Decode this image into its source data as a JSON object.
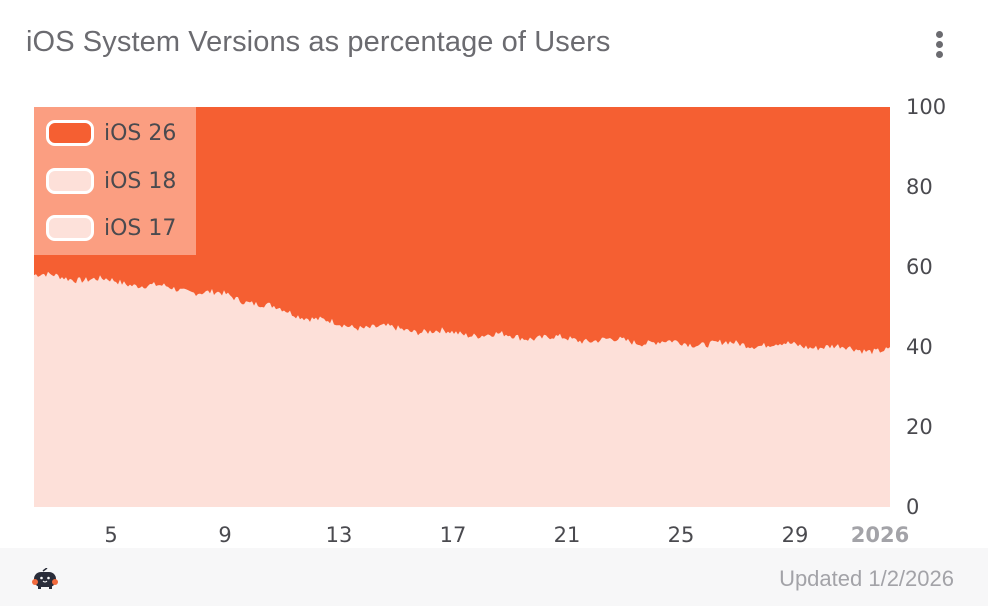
{
  "header": {
    "title": "iOS System Versions as percentage of Users",
    "menu_icon": "more-vertical-icon"
  },
  "colors": {
    "ios26": "#f55f32",
    "ios18": "#fde0d9",
    "ios17": "#fde1da",
    "legend_bg": "#f9a387",
    "axis_text": "#4a4a4f",
    "year_label": "#a3a3a8",
    "footer_bg": "#f7f7f8"
  },
  "legend": {
    "items": [
      {
        "label": "iOS 26",
        "color": "#f55f32"
      },
      {
        "label": "iOS 18",
        "color": "#fde0d9"
      },
      {
        "label": "iOS 17",
        "color": "#fde1da"
      }
    ]
  },
  "axes": {
    "y_ticks": [
      "100",
      "80",
      "60",
      "40",
      "20",
      "0"
    ],
    "x_ticks": [
      "5",
      "9",
      "13",
      "17",
      "21",
      "25",
      "29",
      "2026"
    ]
  },
  "footer": {
    "logo_icon": "mascot-logo-icon",
    "updated_text": "Updated 1/2/2026"
  },
  "chart_data": {
    "type": "area",
    "stacked": true,
    "normalized": true,
    "title": "iOS System Versions as percentage of Users",
    "xlabel": "",
    "ylabel": "",
    "ylim": [
      0,
      100
    ],
    "y_axis_position": "right",
    "x_tick_labels": [
      "5",
      "9",
      "13",
      "17",
      "21",
      "25",
      "29",
      "2026"
    ],
    "x": [
      "Dec 2",
      "Dec 5",
      "Dec 9",
      "Dec 13",
      "Dec 17",
      "Dec 21",
      "Dec 25",
      "Dec 29",
      "Jan 1"
    ],
    "legend_position": "top-left inside",
    "grid": false,
    "series": [
      {
        "name": "iOS 17 + iOS 18 (light fill, combined)",
        "values": [
          58,
          56.5,
          53,
          45.5,
          43.5,
          42,
          41,
          40.5,
          39
        ]
      },
      {
        "name": "iOS 26",
        "values": [
          42,
          43.5,
          47,
          54.5,
          56.5,
          58,
          59,
          59.5,
          61
        ]
      }
    ],
    "notes": "iOS 18 and iOS 17 share nearly identical light fills and appear as one combined region beneath the iOS 26 band."
  }
}
